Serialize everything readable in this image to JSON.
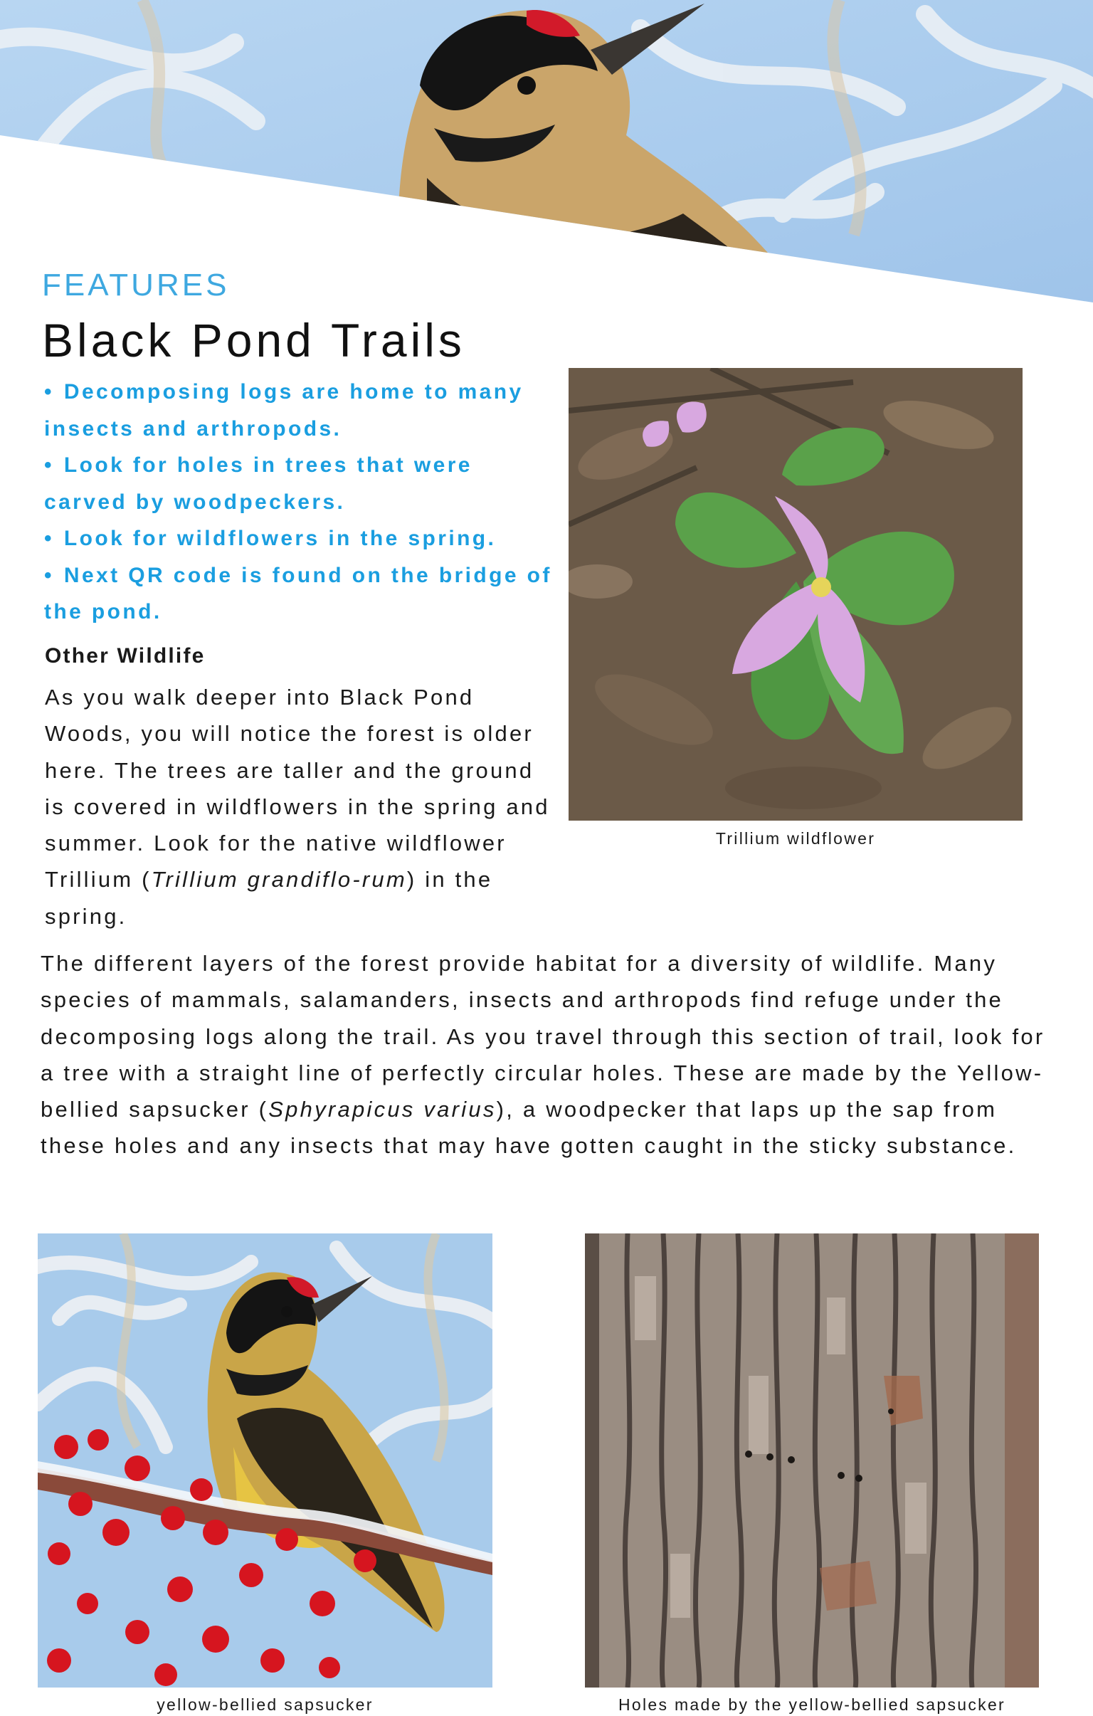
{
  "header": {
    "section_label": "FEATURES",
    "title": "Black Pond Trails",
    "banner_image": "yellow-bellied sapsucker close-up on blue sky background"
  },
  "bullets": [
    "Decomposing logs are home to many insects and arthropods.",
    "Look for holes in trees that were carved by woodpeckers.",
    "Look for wildflowers in the spring.",
    "Next QR code is found on the bridge of the pond."
  ],
  "other_wildlife": {
    "heading": "Other Wildlife",
    "text_before": "As you walk deeper into Black Pond Woods, you will notice the forest is older here. The trees are taller and the ground is covered in wildflowers in the spring and summer. Look for the native wildflower Trillium (",
    "species": "Trillium grandiflo-rum",
    "text_after": ") in the spring."
  },
  "body": {
    "text_before": "The different layers of the forest provide habitat for a diversity of wildlife. Many species of mammals, salamanders, insects and arthropods find refuge under the decomposing logs along the trail. As you travel through this section of trail, look for a tree with a straight line of perfectly circular holes. These are made by the Yellow-bellied sapsucker (",
    "species": "Sphyrapicus varius",
    "text_after": "), a woodpecker that laps up the sap from these holes and any insects that may have gotten caught in the sticky substance."
  },
  "figures": {
    "trillium": {
      "caption": "Trillium wildflower"
    },
    "sapsucker": {
      "caption": "yellow-bellied sapsucker"
    },
    "holes": {
      "caption": "Holes made by the yellow-bellied sapsucker"
    }
  },
  "colors": {
    "accent": "#1a9ee0",
    "section_label": "#3ea8e0",
    "sky": "#a9cdee",
    "text": "#1a1a1a"
  }
}
